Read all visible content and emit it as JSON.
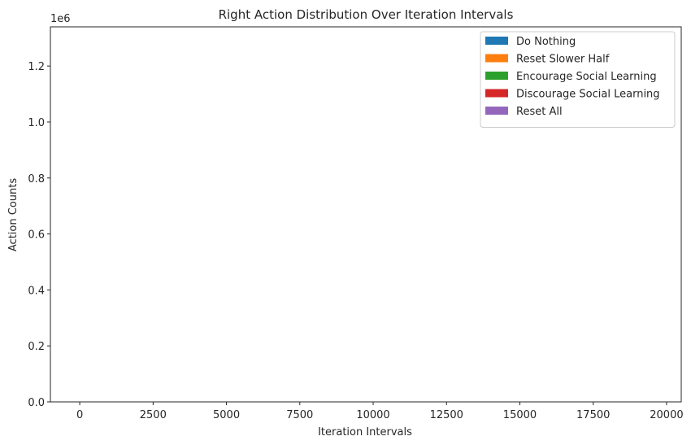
{
  "chart_data": {
    "type": "bar",
    "title": "Right Action Distribution Over Iteration Intervals",
    "xlabel": "Iteration Intervals",
    "ylabel": "Action Counts",
    "y_offset_text": "1e6",
    "xlim": [
      -1000,
      20500
    ],
    "ylim": [
      0,
      1.34
    ],
    "y_scale_multiplier": 1000000,
    "x_ticks": [
      0,
      2500,
      5000,
      7500,
      10000,
      12500,
      15000,
      17500,
      20000
    ],
    "x_tick_labels": [
      "0",
      "2500",
      "5000",
      "7500",
      "10000",
      "12500",
      "15000",
      "17500",
      "20000"
    ],
    "y_ticks": [
      0,
      0.2,
      0.4,
      0.6,
      0.8,
      1.0,
      1.2
    ],
    "y_tick_labels": [
      "0.0",
      "0.2",
      "0.4",
      "0.6",
      "0.8",
      "1.0",
      "1.2"
    ],
    "legend_position": "top-right",
    "grid": false,
    "series": [
      {
        "name": "Do Nothing",
        "color": "#1f77b4"
      },
      {
        "name": "Reset Slower Half",
        "color": "#ff7f0e"
      },
      {
        "name": "Encourage Social Learning",
        "color": "#2ca02c"
      },
      {
        "name": "Discourage Social Learning",
        "color": "#d62728"
      },
      {
        "name": "Reset All",
        "color": "#9467bd"
      }
    ]
  }
}
